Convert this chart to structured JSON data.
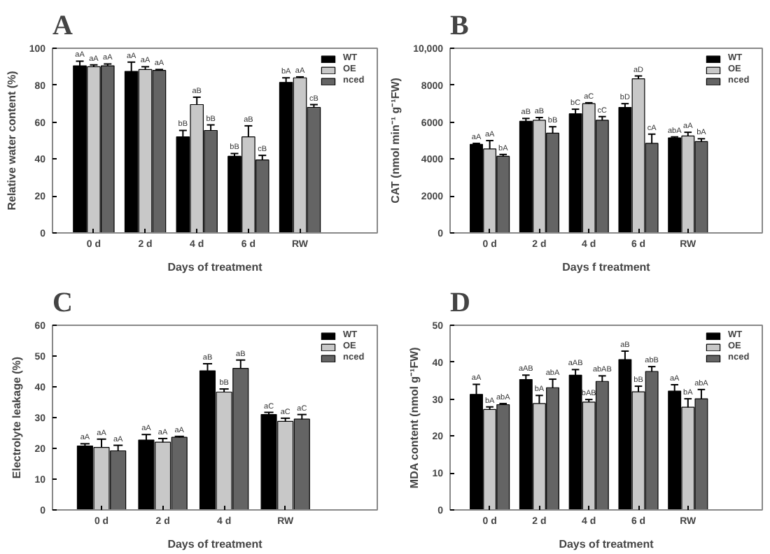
{
  "chart_data": [
    {
      "type": "bar",
      "title": "A",
      "xlabel": "Days of treatment",
      "ylabel": "Relative water content (%)",
      "categories": [
        "0 d",
        "2 d",
        "4 d",
        "6 d",
        "RW"
      ],
      "ylim": [
        0,
        100
      ],
      "yticks": [
        0,
        20,
        40,
        60,
        80,
        100
      ],
      "grid": false,
      "legend": "top right",
      "series": [
        {
          "name": "WT",
          "color": "#000000",
          "values": [
            90.5,
            87.5,
            52,
            41.5,
            81.5
          ],
          "errors": [
            2.5,
            5,
            3.5,
            1.5,
            2.5
          ],
          "value_labels": [
            "aA",
            "aA",
            "bB",
            "bB",
            "bA"
          ]
        },
        {
          "name": "OE",
          "color": "#c8c8c8",
          "values": [
            90,
            88.5,
            69.5,
            52,
            84
          ],
          "errors": [
            1,
            1.5,
            4,
            6,
            0.5
          ],
          "value_labels": [
            "aA",
            "aA",
            "aB",
            "aB",
            "aA"
          ]
        },
        {
          "name": "nced",
          "color": "#646464",
          "values": [
            90.5,
            88,
            55.5,
            39.5,
            68
          ],
          "errors": [
            1,
            0.5,
            3,
            2.5,
            1.5
          ],
          "value_labels": [
            "aA",
            "aA",
            "bB",
            "cB",
            "cB"
          ]
        }
      ]
    },
    {
      "type": "bar",
      "title": "B",
      "xlabel": "Days f treatment",
      "ylabel": "CAT (nmol min⁻¹ g⁻¹FW)",
      "categories": [
        "0 d",
        "2 d",
        "4 d",
        "6 d",
        "RW"
      ],
      "ylim": [
        0,
        10000
      ],
      "yticks": [
        0,
        2000,
        4000,
        6000,
        8000,
        {
          "value": 10000,
          "label": "10,000"
        }
      ],
      "grid": false,
      "legend": "top right",
      "series": [
        {
          "name": "WT",
          "color": "#000000",
          "values": [
            4800,
            6050,
            6450,
            6800,
            5150
          ],
          "errors": [
            50,
            150,
            250,
            200,
            50
          ],
          "value_labels": [
            "aA",
            "aB",
            "bC",
            "bD",
            "abA"
          ]
        },
        {
          "name": "OE",
          "color": "#c8c8c8",
          "values": [
            4550,
            6100,
            7000,
            8350,
            5250
          ],
          "errors": [
            450,
            150,
            50,
            150,
            200
          ],
          "value_labels": [
            "aA",
            "aB",
            "aC",
            "aD",
            "aA"
          ]
        },
        {
          "name": "nced",
          "color": "#646464",
          "values": [
            4150,
            5400,
            6100,
            4850,
            4950
          ],
          "errors": [
            100,
            350,
            200,
            500,
            150
          ],
          "value_labels": [
            "bA",
            "bB",
            "cC",
            "cA",
            "bA"
          ]
        }
      ]
    },
    {
      "type": "bar",
      "title": "C",
      "xlabel": "Days of treatment",
      "ylabel": "Electrolyte leakage (%)",
      "categories": [
        "0 d",
        "2 d",
        "4 d",
        "RW"
      ],
      "ylim": [
        0,
        60
      ],
      "yticks": [
        0,
        10,
        20,
        30,
        40,
        50,
        60
      ],
      "grid": false,
      "legend": "top right",
      "series": [
        {
          "name": "WT",
          "color": "#000000",
          "values": [
            20.8,
            22.7,
            45.2,
            31
          ],
          "errors": [
            0.7,
            1.8,
            2.3,
            0.7
          ],
          "value_labels": [
            "aA",
            "aA",
            "aB",
            "aC"
          ]
        },
        {
          "name": "OE",
          "color": "#c8c8c8",
          "values": [
            20.3,
            22,
            38.3,
            28.8
          ],
          "errors": [
            2.7,
            1.2,
            1,
            1
          ],
          "value_labels": [
            "aA",
            "aA",
            "bB",
            "aC"
          ]
        },
        {
          "name": "nced",
          "color": "#646464",
          "values": [
            19.2,
            23.6,
            46,
            29.5
          ],
          "errors": [
            1.8,
            0.3,
            2.7,
            1.5
          ],
          "value_labels": [
            "aA",
            "aA",
            "aB",
            "aC"
          ]
        }
      ]
    },
    {
      "type": "bar",
      "title": "D",
      "xlabel": "Days of treatment",
      "ylabel": "MDA content (nmol g⁻¹FW)",
      "categories": [
        "0 d",
        "2 d",
        "4 d",
        "6 d",
        "RW"
      ],
      "ylim": [
        0,
        50
      ],
      "yticks": [
        0,
        10,
        20,
        30,
        40,
        50
      ],
      "grid": false,
      "legend": "top right",
      "series": [
        {
          "name": "WT",
          "color": "#000000",
          "values": [
            31.3,
            35.3,
            36.5,
            40.7,
            32.2
          ],
          "errors": [
            2.7,
            1.2,
            1.5,
            2.3,
            1.7
          ],
          "value_labels": [
            "aA",
            "aAB",
            "aAB",
            "aB",
            "aA"
          ]
        },
        {
          "name": "OE",
          "color": "#c8c8c8",
          "values": [
            27.2,
            28.8,
            29.2,
            32,
            27.8
          ],
          "errors": [
            0.7,
            2.2,
            0.7,
            1.5,
            2.3
          ],
          "value_labels": [
            "bA",
            "bA",
            "bAB",
            "bB",
            "bA"
          ]
        },
        {
          "name": "nced",
          "color": "#646464",
          "values": [
            28.5,
            33.1,
            34.8,
            37.5,
            30.1
          ],
          "errors": [
            0.3,
            2.3,
            1.5,
            1.3,
            2.5
          ],
          "value_labels": [
            "abA",
            "abA",
            "abAB",
            "abB",
            "abA"
          ]
        }
      ]
    }
  ]
}
